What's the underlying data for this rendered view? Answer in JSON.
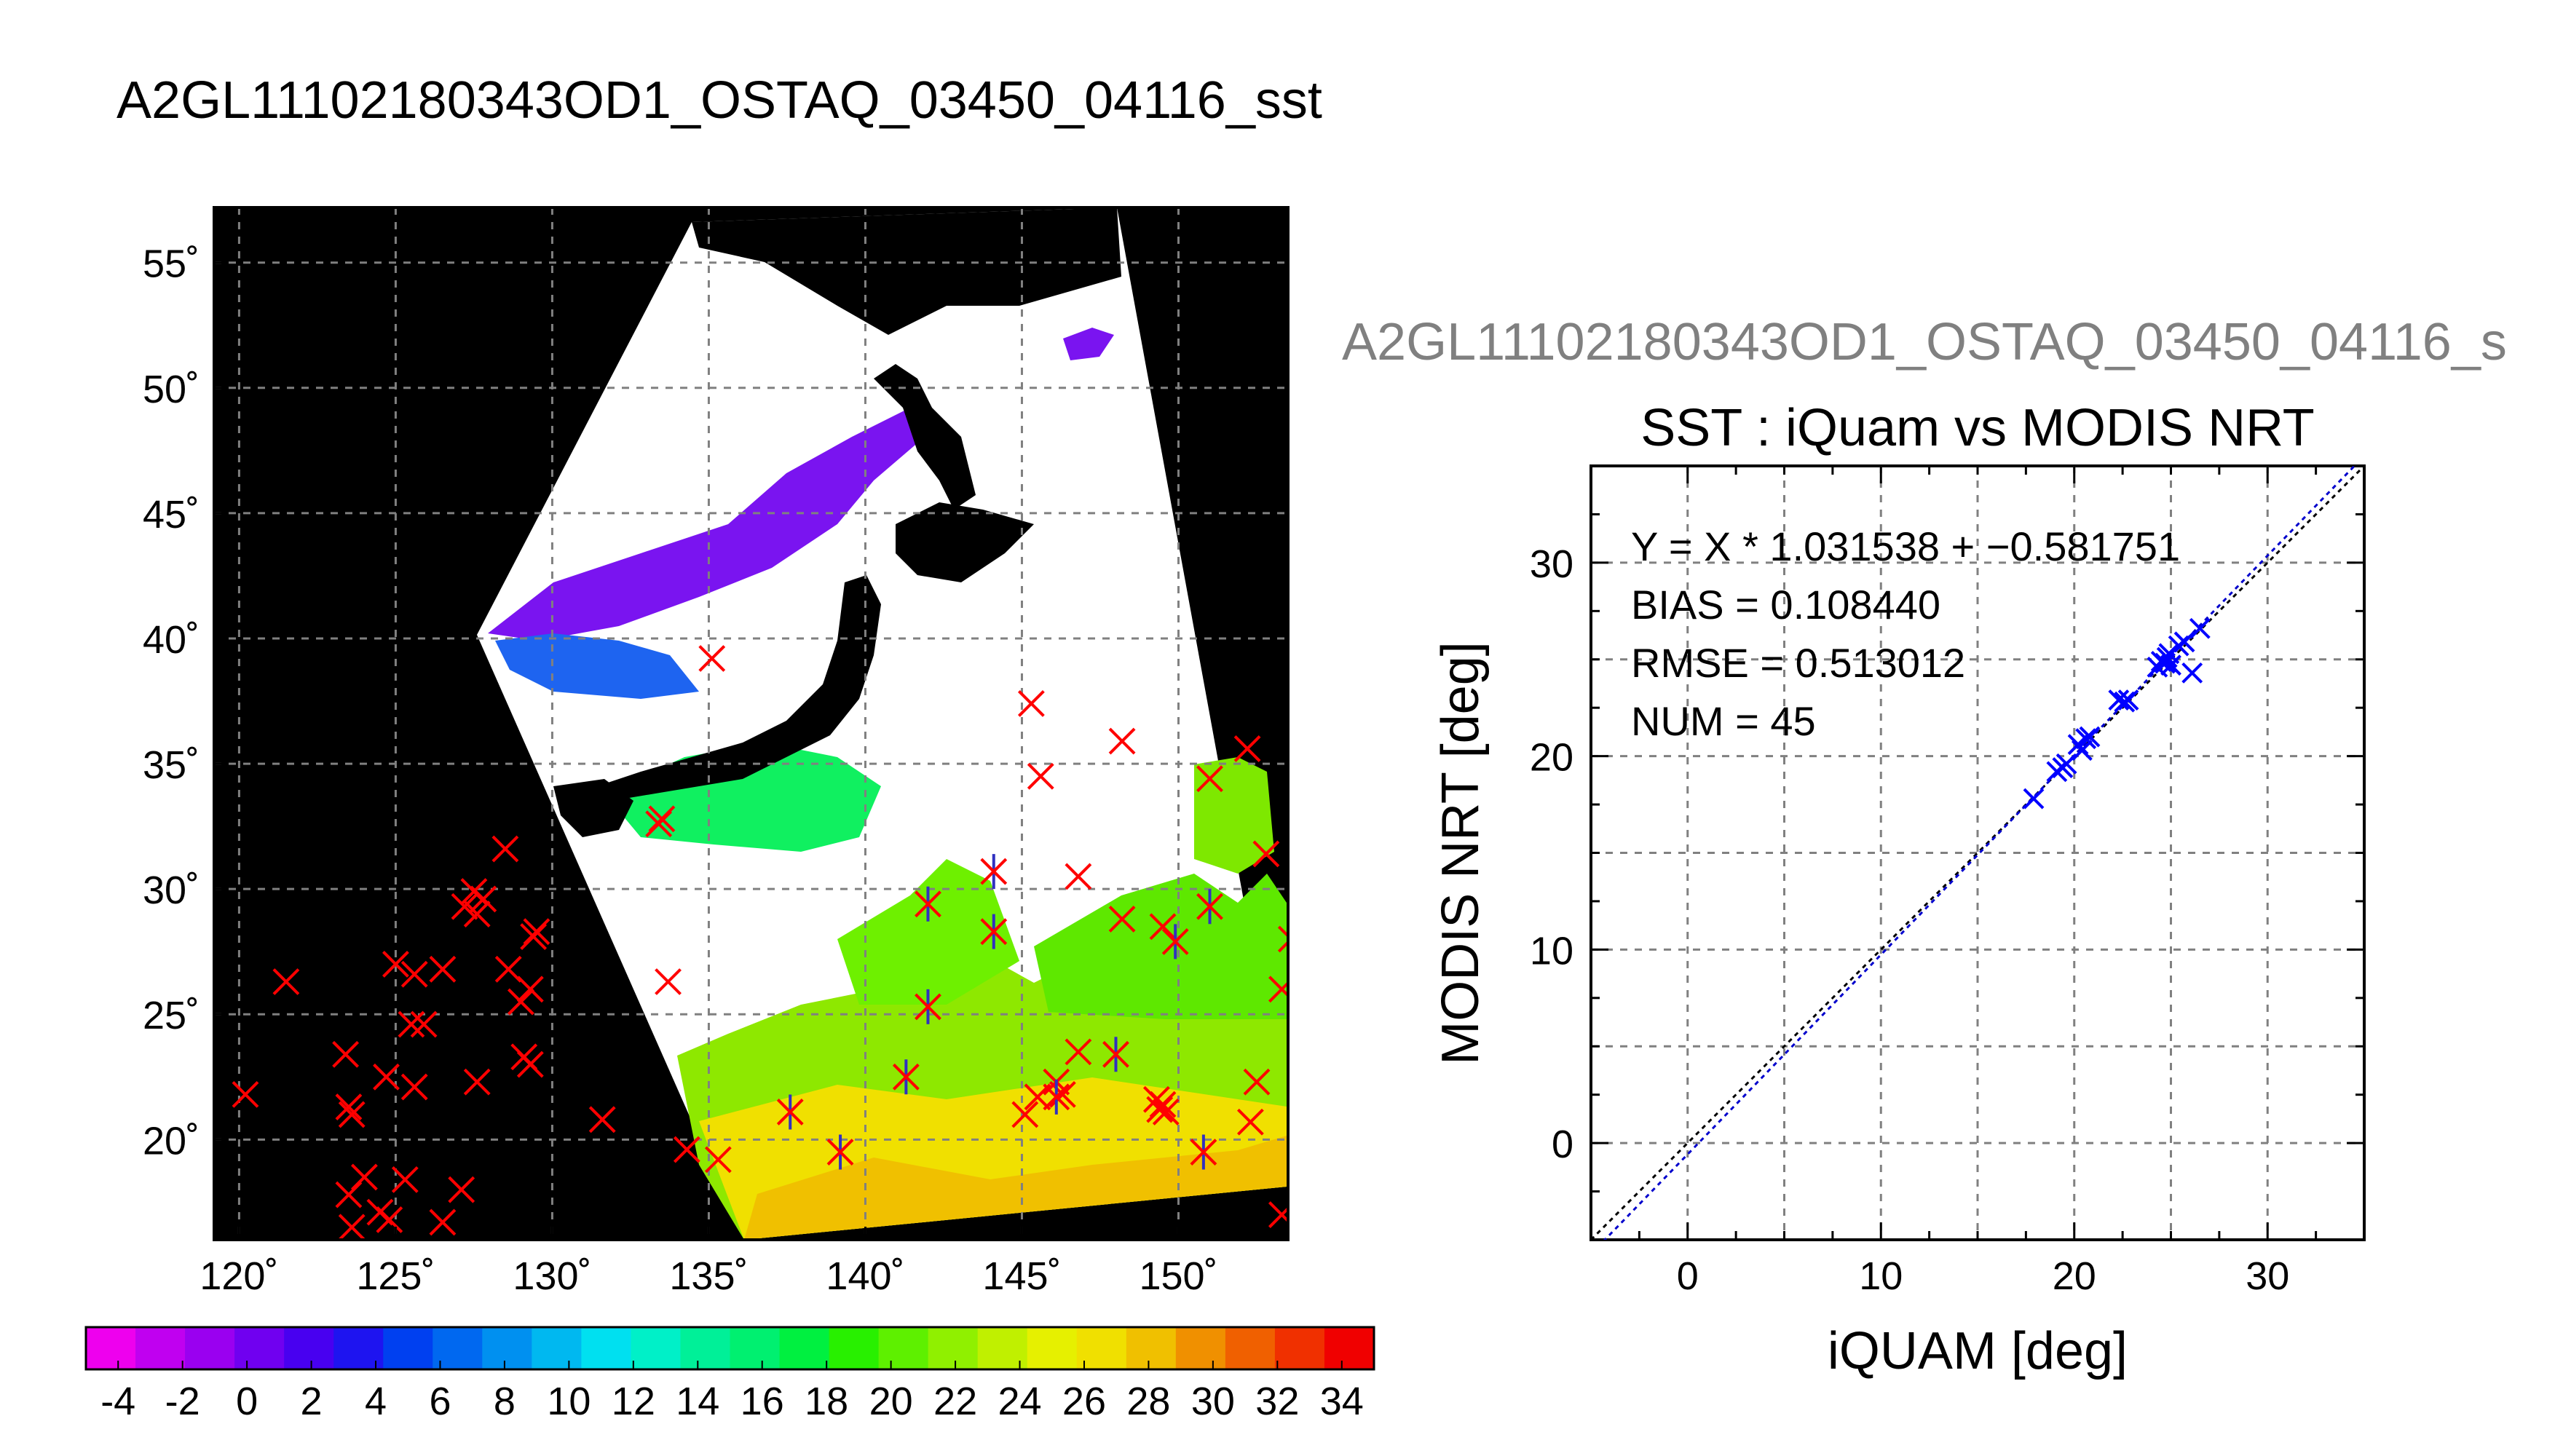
{
  "page": {
    "main_title": "A2GL11102180343OD1_OSTAQ_03450_04116_sst",
    "secondary_title": "A2GL11102180343OD1_OSTAQ_03450_04116_s"
  },
  "chart_data": [
    {
      "type": "map",
      "title": "A2GL11102180343OD1_OSTAQ_03450_04116_sst",
      "x_ticks": [
        "120˚",
        "125˚",
        "130˚",
        "135˚",
        "140˚",
        "145˚",
        "150˚"
      ],
      "y_ticks": [
        "20˚",
        "25˚",
        "30˚",
        "35˚",
        "40˚",
        "45˚",
        "50˚",
        "55˚"
      ],
      "x_tick_values": [
        120,
        125,
        130,
        135,
        140,
        145,
        150
      ],
      "y_tick_values": [
        20,
        25,
        30,
        35,
        40,
        45,
        50,
        55
      ],
      "xlim": [
        119.2,
        153.5
      ],
      "ylim": [
        16,
        57.2
      ],
      "grid": true,
      "colorbar": {
        "range": [
          -5,
          35
        ],
        "ticks": [
          "-4",
          "-2",
          "0",
          "2",
          "4",
          "6",
          "8",
          "10",
          "12",
          "14",
          "16",
          "18",
          "20",
          "22",
          "24",
          "26",
          "28",
          "30",
          "32",
          "34"
        ],
        "tick_values": [
          -4,
          -2,
          0,
          2,
          4,
          6,
          8,
          10,
          12,
          14,
          16,
          18,
          20,
          22,
          24,
          26,
          28,
          30,
          32,
          34
        ],
        "colors": [
          "#ee00ee",
          "#c000f0",
          "#9a00f0",
          "#7000f0",
          "#4800f0",
          "#1e14f0",
          "#0040f0",
          "#0068f0",
          "#0090f0",
          "#00b8f0",
          "#00e0f0",
          "#00f0c8",
          "#00f098",
          "#00f070",
          "#00f040",
          "#28f000",
          "#5ef000",
          "#90f000",
          "#c0f000",
          "#e6f000",
          "#f0e000",
          "#f0c000",
          "#f09000",
          "#f06000",
          "#f03000",
          "#f00000"
        ]
      },
      "iquam_points_red_x": [
        [
          135.1,
          39.2
        ],
        [
          145.3,
          37.4
        ],
        [
          148.2,
          35.9
        ],
        [
          145.6,
          34.5
        ],
        [
          151.0,
          34.4
        ],
        [
          152.2,
          35.6
        ],
        [
          133.4,
          32.6
        ],
        [
          133.5,
          32.8
        ],
        [
          128.5,
          31.6
        ],
        [
          152.8,
          31.4
        ],
        [
          127.5,
          29.9
        ],
        [
          127.8,
          29.6
        ],
        [
          127.6,
          29.0
        ],
        [
          127.2,
          29.3
        ],
        [
          129.4,
          28.1
        ],
        [
          129.5,
          28.3
        ],
        [
          146.8,
          30.5
        ],
        [
          148.2,
          28.8
        ],
        [
          149.5,
          28.5
        ],
        [
          153.6,
          28.0
        ],
        [
          121.5,
          26.3
        ],
        [
          125.0,
          27.0
        ],
        [
          125.6,
          26.6
        ],
        [
          126.5,
          26.8
        ],
        [
          133.7,
          26.3
        ],
        [
          128.6,
          26.8
        ],
        [
          129.3,
          26.0
        ],
        [
          129.0,
          25.5
        ],
        [
          153.3,
          26.0
        ],
        [
          125.5,
          24.6
        ],
        [
          125.9,
          24.6
        ],
        [
          123.4,
          23.4
        ],
        [
          129.1,
          23.3
        ],
        [
          129.3,
          23.0
        ],
        [
          124.7,
          22.5
        ],
        [
          127.6,
          22.3
        ],
        [
          123.5,
          21.3
        ],
        [
          123.6,
          21.0
        ],
        [
          125.6,
          22.1
        ],
        [
          146.8,
          23.5
        ],
        [
          146.1,
          22.3
        ],
        [
          145.5,
          21.7
        ],
        [
          145.1,
          21.0
        ],
        [
          146.3,
          21.8
        ],
        [
          149.3,
          21.6
        ],
        [
          149.4,
          21.2
        ],
        [
          149.5,
          21.4
        ],
        [
          149.6,
          21.1
        ],
        [
          152.5,
          22.3
        ],
        [
          152.3,
          20.7
        ],
        [
          131.6,
          20.8
        ],
        [
          134.3,
          19.6
        ],
        [
          135.3,
          19.2
        ],
        [
          124.0,
          18.5
        ],
        [
          125.3,
          18.4
        ],
        [
          124.5,
          17.1
        ],
        [
          127.1,
          18.0
        ],
        [
          123.5,
          17.8
        ],
        [
          126.5,
          16.7
        ],
        [
          124.8,
          16.8
        ],
        [
          123.6,
          16.5
        ],
        [
          153.3,
          17.0
        ],
        [
          120.2,
          21.8
        ]
      ],
      "matchup_points_star": [
        [
          144.1,
          30.7
        ],
        [
          142.0,
          29.4
        ],
        [
          144.1,
          28.3
        ],
        [
          149.9,
          27.9
        ],
        [
          151.0,
          29.3
        ],
        [
          142.0,
          25.3
        ],
        [
          141.3,
          22.5
        ],
        [
          148.0,
          23.4
        ],
        [
          146.1,
          21.7
        ],
        [
          137.6,
          21.1
        ],
        [
          139.2,
          19.5
        ],
        [
          150.8,
          19.5
        ]
      ]
    },
    {
      "type": "scatter",
      "title": "SST : iQuam vs MODIS NRT",
      "xlabel": "iQUAM [deg]",
      "ylabel": "MODIS NRT [deg]",
      "xlim": [
        -5,
        35
      ],
      "ylim": [
        -5,
        35
      ],
      "x_ticks": [
        "0",
        "10",
        "20",
        "30"
      ],
      "y_ticks": [
        "0",
        "10",
        "20",
        "30"
      ],
      "tick_values": [
        0,
        10,
        20,
        30
      ],
      "grid": true,
      "stats": {
        "equation": "Y = X * 1.031538 + −0.581751",
        "bias": "BIAS = 0.108440",
        "rmse": "RMSE = 0.513012",
        "num": "NUM = 45"
      },
      "fit": {
        "slope": 1.031538,
        "intercept": -0.581751
      },
      "points": [
        [
          17.9,
          17.8
        ],
        [
          19.1,
          19.2
        ],
        [
          19.4,
          19.4
        ],
        [
          19.6,
          19.6
        ],
        [
          20.2,
          20.6
        ],
        [
          20.4,
          20.3
        ],
        [
          20.6,
          20.9
        ],
        [
          20.8,
          21.0
        ],
        [
          22.3,
          22.9
        ],
        [
          22.6,
          22.8
        ],
        [
          22.8,
          22.9
        ],
        [
          24.3,
          24.6
        ],
        [
          24.5,
          24.9
        ],
        [
          24.7,
          24.8
        ],
        [
          24.8,
          25.1
        ],
        [
          25.0,
          24.7
        ],
        [
          24.9,
          25.3
        ],
        [
          25.4,
          25.7
        ],
        [
          25.7,
          25.9
        ],
        [
          26.1,
          24.3
        ],
        [
          26.5,
          26.6
        ]
      ],
      "colors": {
        "points": "#0000ff",
        "fit_line": "#0000cc",
        "one_to_one": "#000000"
      }
    }
  ]
}
